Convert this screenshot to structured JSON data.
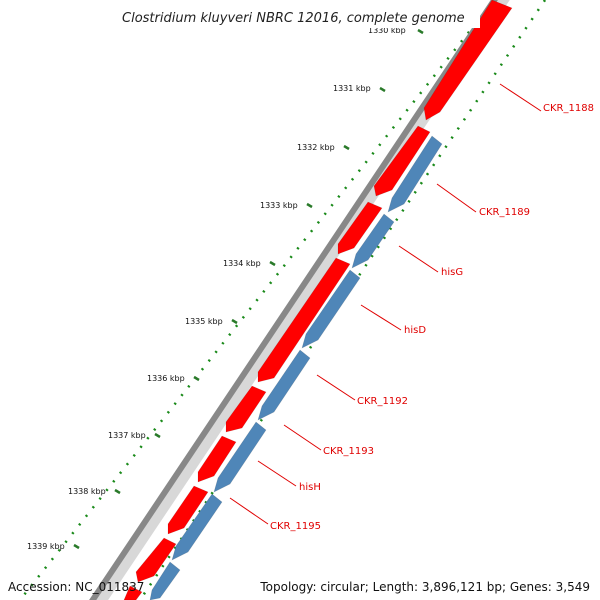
{
  "title": "Clostridium kluyveri NBRC 12016, complete genome",
  "footer": {
    "accession": "Accession: NC_011837",
    "topology": "Topology: circular; Length: 3,896,121 bp; Genes: 3,549"
  },
  "colors": {
    "forward_gene": "#ff0000",
    "reverse_gene": "#4f86b8",
    "backbone": "#888888",
    "tick_major": "#2a7a2a",
    "tick_minor": "#1a8a1a",
    "label": "#e00000"
  },
  "ruler": {
    "ticks": [
      "1330 kbp",
      "1331 kbp",
      "1332 kbp",
      "1333 kbp",
      "1334 kbp",
      "1335 kbp",
      "1336 kbp",
      "1337 kbp",
      "1338 kbp",
      "1339 kbp"
    ]
  },
  "genes": [
    {
      "label": "CKR_1188",
      "strand": "forward"
    },
    {
      "label": "CKR_1189",
      "strand": "reverse"
    },
    {
      "label": "hisG",
      "strand": "reverse"
    },
    {
      "label": "hisD",
      "strand": "reverse"
    },
    {
      "label": "CKR_1192",
      "strand": "reverse"
    },
    {
      "label": "CKR_1193",
      "strand": "reverse"
    },
    {
      "label": "hisH",
      "strand": "reverse"
    },
    {
      "label": "CKR_1195",
      "strand": "reverse"
    }
  ]
}
